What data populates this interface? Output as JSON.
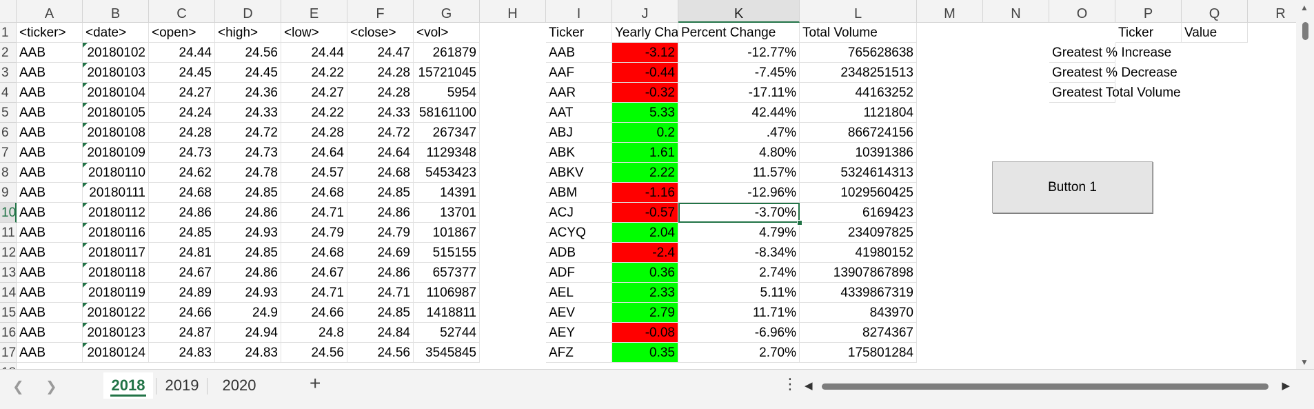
{
  "columns": [
    "A",
    "B",
    "C",
    "D",
    "E",
    "F",
    "G",
    "H",
    "I",
    "J",
    "K",
    "L",
    "M",
    "N",
    "O",
    "P",
    "Q",
    "R"
  ],
  "selected_column": "K",
  "selected_row": 10,
  "stock_headers": [
    "<ticker>",
    "<date>",
    "<open>",
    "<high>",
    "<low>",
    "<close>",
    "<vol>"
  ],
  "stock_rows": [
    [
      "AAB",
      "20180102",
      "24.44",
      "24.56",
      "24.44",
      "24.47",
      "261879"
    ],
    [
      "AAB",
      "20180103",
      "24.45",
      "24.45",
      "24.22",
      "24.28",
      "15721045"
    ],
    [
      "AAB",
      "20180104",
      "24.27",
      "24.36",
      "24.27",
      "24.28",
      "5954"
    ],
    [
      "AAB",
      "20180105",
      "24.24",
      "24.33",
      "24.22",
      "24.33",
      "58161100"
    ],
    [
      "AAB",
      "20180108",
      "24.28",
      "24.72",
      "24.28",
      "24.72",
      "267347"
    ],
    [
      "AAB",
      "20180109",
      "24.73",
      "24.73",
      "24.64",
      "24.64",
      "1129348"
    ],
    [
      "AAB",
      "20180110",
      "24.62",
      "24.78",
      "24.57",
      "24.68",
      "5453423"
    ],
    [
      "AAB",
      "20180111",
      "24.68",
      "24.85",
      "24.68",
      "24.85",
      "14391"
    ],
    [
      "AAB",
      "20180112",
      "24.86",
      "24.86",
      "24.71",
      "24.86",
      "13701"
    ],
    [
      "AAB",
      "20180116",
      "24.85",
      "24.93",
      "24.79",
      "24.79",
      "101867"
    ],
    [
      "AAB",
      "20180117",
      "24.81",
      "24.85",
      "24.68",
      "24.69",
      "515155"
    ],
    [
      "AAB",
      "20180118",
      "24.67",
      "24.86",
      "24.67",
      "24.86",
      "657377"
    ],
    [
      "AAB",
      "20180119",
      "24.89",
      "24.93",
      "24.71",
      "24.71",
      "1106987"
    ],
    [
      "AAB",
      "20180122",
      "24.66",
      "24.9",
      "24.66",
      "24.85",
      "1418811"
    ],
    [
      "AAB",
      "20180123",
      "24.87",
      "24.94",
      "24.8",
      "24.84",
      "52744"
    ],
    [
      "AAB",
      "20180124",
      "24.83",
      "24.83",
      "24.56",
      "24.56",
      "3545845"
    ]
  ],
  "summary_headers": [
    "Ticker",
    "Yearly Change",
    "Percent Change",
    "Total Volume"
  ],
  "summary_rows": [
    {
      "ticker": "AAB",
      "change": "-3.12",
      "pct": "-12.77%",
      "volume": "765628638",
      "status": "negative"
    },
    {
      "ticker": "AAF",
      "change": "-0.44",
      "pct": "-7.45%",
      "volume": "2348251513",
      "status": "negative"
    },
    {
      "ticker": "AAR",
      "change": "-0.32",
      "pct": "-17.11%",
      "volume": "44163252",
      "status": "negative"
    },
    {
      "ticker": "AAT",
      "change": "5.33",
      "pct": "42.44%",
      "volume": "1121804",
      "status": "positive"
    },
    {
      "ticker": "ABJ",
      "change": "0.2",
      "pct": ".47%",
      "volume": "866724156",
      "status": "positive"
    },
    {
      "ticker": "ABK",
      "change": "1.61",
      "pct": "4.80%",
      "volume": "10391386",
      "status": "positive"
    },
    {
      "ticker": "ABKV",
      "change": "2.22",
      "pct": "11.57%",
      "volume": "5324614313",
      "status": "positive"
    },
    {
      "ticker": "ABM",
      "change": "-1.16",
      "pct": "-12.96%",
      "volume": "1029560425",
      "status": "negative"
    },
    {
      "ticker": "ACJ",
      "change": "-0.57",
      "pct": "-3.70%",
      "volume": "6169423",
      "status": "negative"
    },
    {
      "ticker": "ACYQ",
      "change": "2.04",
      "pct": "4.79%",
      "volume": "234097825",
      "status": "positive"
    },
    {
      "ticker": "ADB",
      "change": "-2.4",
      "pct": "-8.34%",
      "volume": "41980152",
      "status": "negative"
    },
    {
      "ticker": "ADF",
      "change": "0.36",
      "pct": "2.74%",
      "volume": "13907867898",
      "status": "positive"
    },
    {
      "ticker": "AEL",
      "change": "2.33",
      "pct": "5.11%",
      "volume": "4339867319",
      "status": "positive"
    },
    {
      "ticker": "AEV",
      "change": "2.79",
      "pct": "11.71%",
      "volume": "843970",
      "status": "positive"
    },
    {
      "ticker": "AEY",
      "change": "-0.08",
      "pct": "-6.96%",
      "volume": "8274367",
      "status": "negative"
    },
    {
      "ticker": "AFZ",
      "change": "0.35",
      "pct": "2.70%",
      "volume": "175801284",
      "status": "positive"
    }
  ],
  "greatest": {
    "header_ticker": "Ticker",
    "header_value": "Value",
    "labels": [
      "Greatest % Increase",
      "Greatest % Decrease",
      "Greatest Total Volume"
    ]
  },
  "button_label": "Button 1",
  "sheet_tabs": [
    {
      "label": "2018",
      "active": true
    },
    {
      "label": "2019",
      "active": false
    },
    {
      "label": "2020",
      "active": false
    }
  ],
  "colors": {
    "negative": "#ff0000",
    "positive": "#00ff00",
    "accent": "#217346"
  },
  "icons": {
    "prev": "chevron-left-icon",
    "next": "chevron-right-icon",
    "add": "plus-icon",
    "more": "more-vertical-icon"
  }
}
